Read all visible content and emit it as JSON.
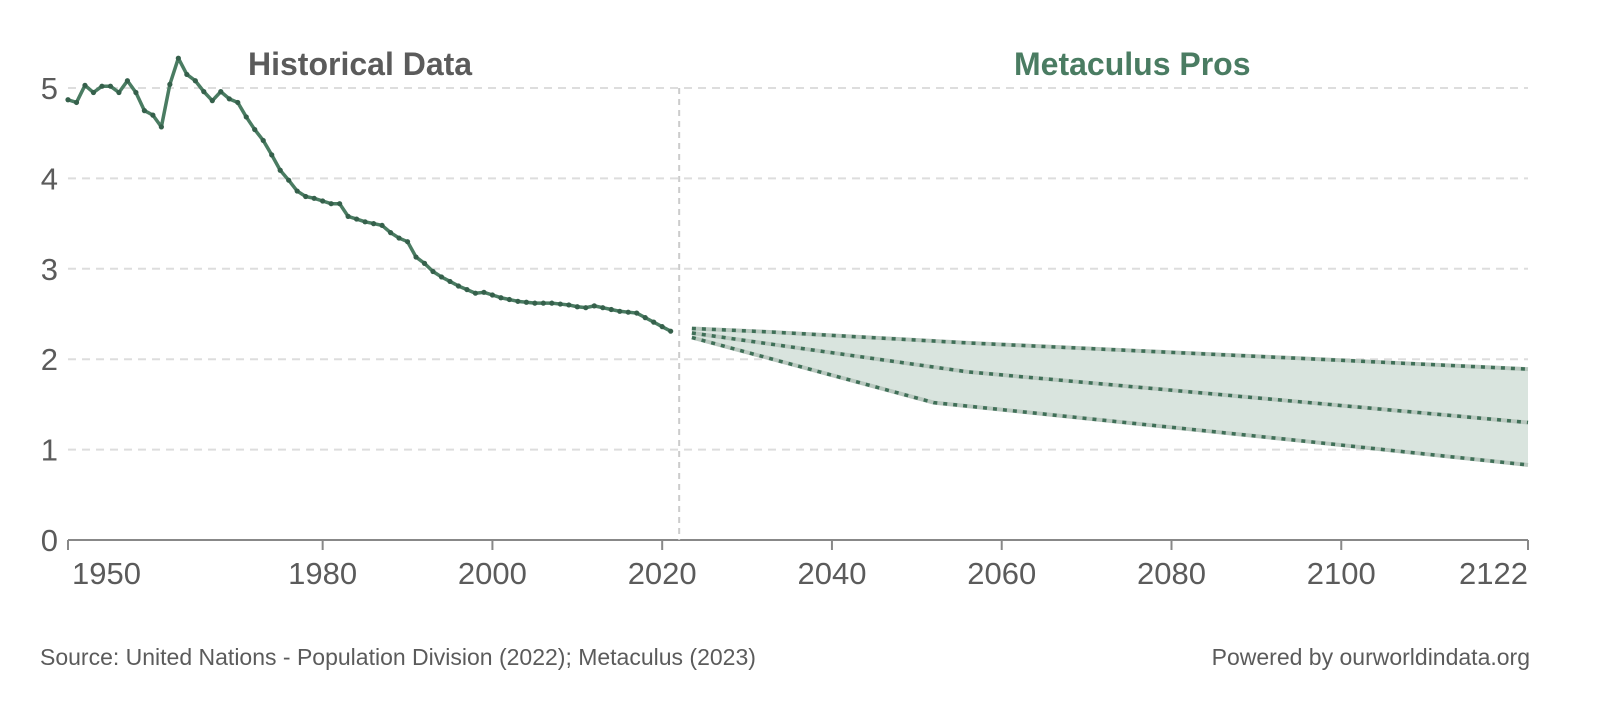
{
  "chart_data": {
    "type": "line",
    "title": "",
    "xlabel": "",
    "ylabel": "",
    "xlim": [
      1950,
      2122
    ],
    "ylim": [
      0,
      5
    ],
    "grid": "horizontal-dashed",
    "x_ticks": [
      1950,
      1980,
      2000,
      2020,
      2040,
      2060,
      2080,
      2100,
      2122
    ],
    "y_ticks": [
      0,
      1,
      2,
      3,
      4,
      5
    ],
    "divider_year": 2022,
    "annotations": [
      {
        "text": "Historical Data",
        "color": "#5b5b5b",
        "position": "top-left"
      },
      {
        "text": "Metaculus Pros",
        "color": "#4a7c62",
        "position": "top-right"
      }
    ],
    "series": [
      {
        "name": "Historical Data",
        "style": "solid-with-markers",
        "color": "#4a7c62",
        "x": [
          1950,
          1951,
          1952,
          1953,
          1954,
          1955,
          1956,
          1957,
          1958,
          1959,
          1960,
          1961,
          1962,
          1963,
          1964,
          1965,
          1966,
          1967,
          1968,
          1969,
          1970,
          1971,
          1972,
          1973,
          1974,
          1975,
          1976,
          1977,
          1978,
          1979,
          1980,
          1981,
          1982,
          1983,
          1984,
          1985,
          1986,
          1987,
          1988,
          1989,
          1990,
          1991,
          1992,
          1993,
          1994,
          1995,
          1996,
          1997,
          1998,
          1999,
          2000,
          2001,
          2002,
          2003,
          2004,
          2005,
          2006,
          2007,
          2008,
          2009,
          2010,
          2011,
          2012,
          2013,
          2014,
          2015,
          2016,
          2017,
          2018,
          2019,
          2020,
          2021
        ],
        "values": [
          4.87,
          4.84,
          5.03,
          4.95,
          5.02,
          5.02,
          4.95,
          5.08,
          4.95,
          4.75,
          4.7,
          4.57,
          5.04,
          5.33,
          5.15,
          5.08,
          4.96,
          4.86,
          4.96,
          4.88,
          4.84,
          4.68,
          4.54,
          4.42,
          4.26,
          4.09,
          3.98,
          3.86,
          3.8,
          3.78,
          3.75,
          3.72,
          3.72,
          3.58,
          3.55,
          3.52,
          3.5,
          3.48,
          3.4,
          3.34,
          3.3,
          3.13,
          3.06,
          2.97,
          2.91,
          2.86,
          2.81,
          2.77,
          2.73,
          2.74,
          2.71,
          2.68,
          2.66,
          2.64,
          2.63,
          2.62,
          2.62,
          2.62,
          2.61,
          2.6,
          2.58,
          2.57,
          2.59,
          2.57,
          2.55,
          2.53,
          2.52,
          2.51,
          2.46,
          2.41,
          2.36,
          2.31
        ]
      },
      {
        "name": "Metaculus Pros (upper bound)",
        "style": "dotted",
        "color": "#3f6f57",
        "x": [
          2023.5,
          2033,
          2056,
          2095,
          2122
        ],
        "values": [
          2.34,
          2.3,
          2.18,
          2.01,
          1.89
        ]
      },
      {
        "name": "Metaculus Pros (median)",
        "style": "dotted",
        "color": "#3f6f57",
        "x": [
          2023.5,
          2056,
          2095,
          2122
        ],
        "values": [
          2.29,
          1.86,
          1.53,
          1.3
        ]
      },
      {
        "name": "Metaculus Pros (lower bound)",
        "style": "dotted",
        "color": "#3f6f57",
        "x": [
          2023.5,
          2052,
          2095,
          2122
        ],
        "values": [
          2.24,
          1.52,
          1.1,
          0.83
        ]
      }
    ],
    "band": {
      "name": "Metaculus Pros range",
      "upper": "Metaculus Pros (upper bound)",
      "lower": "Metaculus Pros (lower bound)",
      "color": "#d9e4de"
    }
  },
  "labels": {
    "historical_title": "Historical Data",
    "forecast_title": "Metaculus Pros"
  },
  "footer": {
    "source": "Source: United Nations - Population Division (2022); Metaculus (2023)",
    "powered_by": "Powered by ourworldindata.org"
  },
  "colors": {
    "line": "#4a7c62",
    "forecast_line": "#3f6f57",
    "band_fill": "#d9e4de",
    "grid": "#dddddd",
    "axis": "#888888",
    "text": "#5b5b5b"
  }
}
